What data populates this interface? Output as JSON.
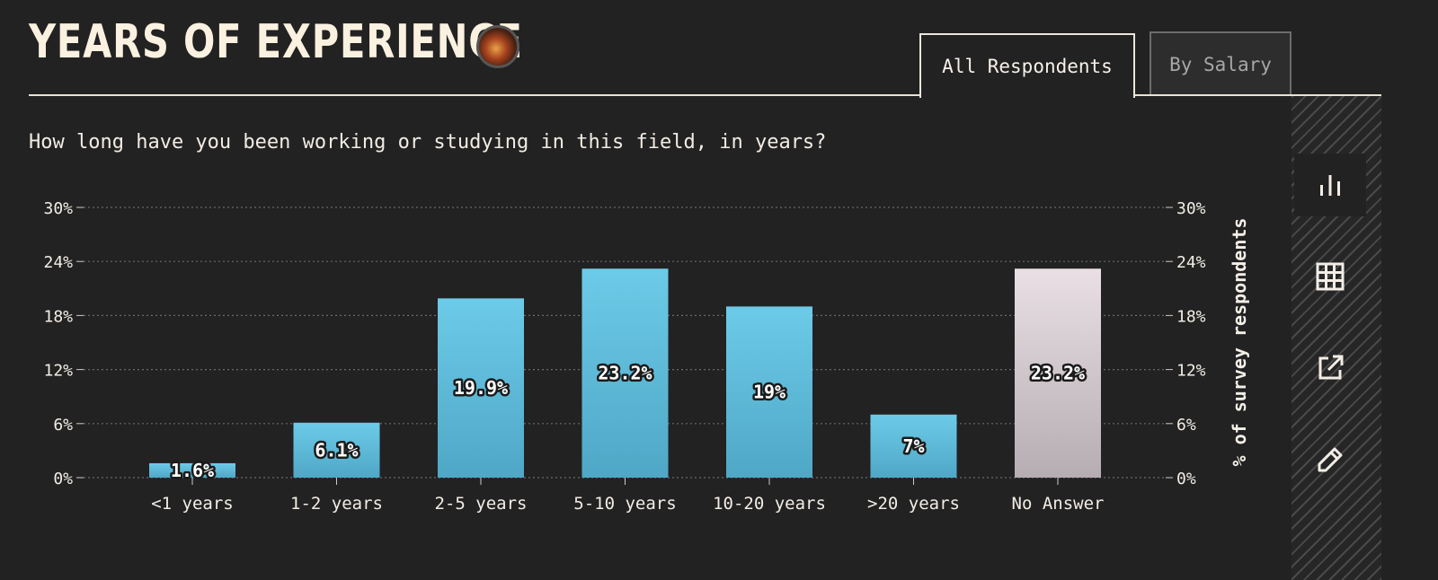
{
  "header": {
    "title": "YEARS OF EXPERIENCE",
    "tabs": [
      {
        "label": "All Respondents",
        "active": true
      },
      {
        "label": "By Salary",
        "active": false
      }
    ]
  },
  "sidebar": {
    "buttons": [
      {
        "icon": "bar-chart-icon",
        "active": true
      },
      {
        "icon": "table-icon",
        "active": false
      },
      {
        "icon": "external-link-icon",
        "active": false
      },
      {
        "icon": "pencil-icon",
        "active": false
      }
    ]
  },
  "question": "How long have you been working or studying in this field, in years?",
  "colors": {
    "background": "#232222",
    "bar_top": "#6ccbe8",
    "bar_bottom": "#4fa7c6",
    "no_answer_top": "#e9dfe4",
    "no_answer_bottom": "#b6adb2",
    "grid": "#6a6a6a",
    "text": "#f2ede6"
  },
  "chart_data": {
    "type": "bar",
    "categories": [
      "<1 years",
      "1-2 years",
      "2-5 years",
      "5-10 years",
      "10-20 years",
      ">20 years",
      "No Answer"
    ],
    "values": [
      1.6,
      6.1,
      19.9,
      23.2,
      19,
      7,
      23.2
    ],
    "labels": [
      "1.6%",
      "6.1%",
      "19.9%",
      "23.2%",
      "19%",
      "7%",
      "23.2%"
    ],
    "y_ticks": [
      0,
      6,
      12,
      18,
      24,
      30
    ],
    "y_tick_labels": [
      "0%",
      "6%",
      "12%",
      "18%",
      "24%",
      "30%"
    ],
    "ylim": [
      0,
      30
    ],
    "ylabel": "% of survey respondents",
    "xlabel": "",
    "grid": true,
    "secondary_y_axis": true
  }
}
